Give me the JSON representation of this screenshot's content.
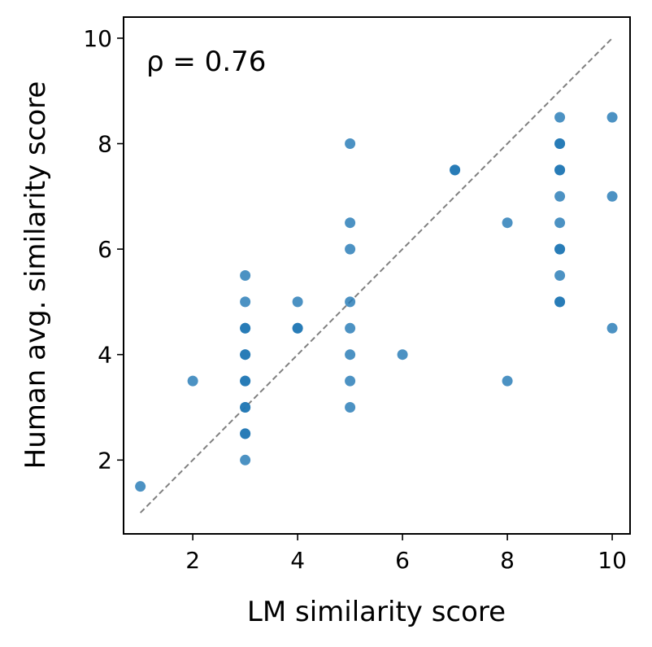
{
  "chart_data": {
    "type": "scatter",
    "title": "",
    "xlabel": "LM similarity score",
    "ylabel": "Human avg. similarity score",
    "annotation": "ρ = 0.76",
    "xlim": [
      0.68,
      10.34
    ],
    "ylim": [
      0.6,
      10.4
    ],
    "xticks": [
      2,
      4,
      6,
      8,
      10
    ],
    "yticks": [
      2,
      4,
      6,
      8,
      10
    ],
    "grid": false,
    "reference_line": {
      "style": "dashed",
      "color": "#808080",
      "from": [
        1,
        1
      ],
      "to": [
        10,
        10
      ]
    },
    "marker_color": "#1f77b4",
    "points": [
      [
        1,
        1.5
      ],
      [
        2,
        3.5
      ],
      [
        3,
        5.5
      ],
      [
        3,
        5
      ],
      [
        3,
        4.5
      ],
      [
        3,
        4.5
      ],
      [
        3,
        4
      ],
      [
        3,
        4
      ],
      [
        3,
        3.5
      ],
      [
        3,
        3.5
      ],
      [
        3,
        3
      ],
      [
        3,
        3
      ],
      [
        3,
        2.5
      ],
      [
        3,
        2.5
      ],
      [
        3,
        2
      ],
      [
        4,
        5
      ],
      [
        4,
        4.5
      ],
      [
        4,
        4.5
      ],
      [
        5,
        8
      ],
      [
        5,
        6.5
      ],
      [
        5,
        6
      ],
      [
        5,
        5
      ],
      [
        5,
        4.5
      ],
      [
        5,
        4
      ],
      [
        5,
        3.5
      ],
      [
        5,
        3
      ],
      [
        6,
        4
      ],
      [
        7,
        7.5
      ],
      [
        7,
        7.5
      ],
      [
        8,
        6.5
      ],
      [
        8,
        3.5
      ],
      [
        9,
        8.5
      ],
      [
        9,
        8
      ],
      [
        9,
        8
      ],
      [
        9,
        7.5
      ],
      [
        9,
        7.5
      ],
      [
        9,
        7
      ],
      [
        9,
        6.5
      ],
      [
        9,
        6
      ],
      [
        9,
        6
      ],
      [
        9,
        5.5
      ],
      [
        9,
        5
      ],
      [
        9,
        5
      ],
      [
        10,
        8.5
      ],
      [
        10,
        7
      ],
      [
        10,
        4.5
      ]
    ]
  }
}
